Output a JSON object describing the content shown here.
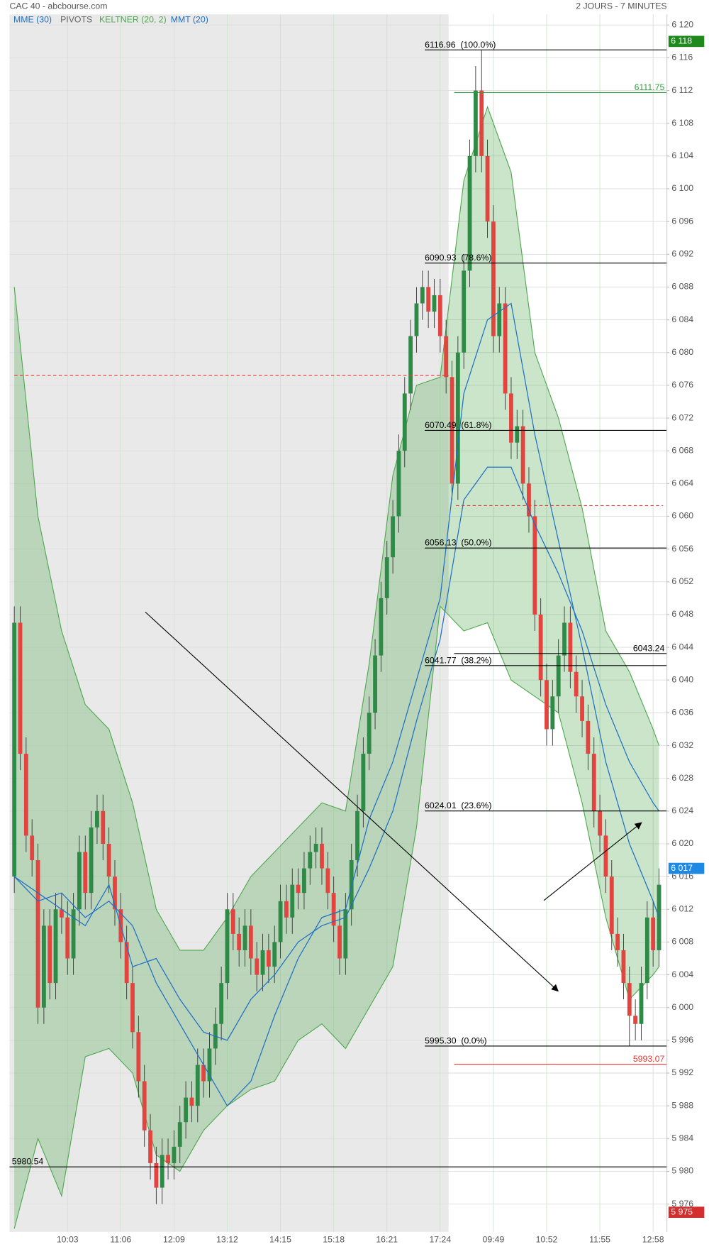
{
  "header": {
    "title": "CAC 40 - abcbourse.com",
    "period": "2 JOURS - 7 MINUTES"
  },
  "chart_data": {
    "type": "candlestick",
    "categories": [
      null,
      null,
      null,
      null,
      null,
      null,
      null,
      null,
      null,
      "10:03",
      null,
      null,
      null,
      null,
      null,
      null,
      null,
      null,
      "11:06",
      null,
      null,
      null,
      null,
      null,
      null,
      null,
      null,
      "12:09",
      null,
      null,
      null,
      null,
      null,
      null,
      null,
      null,
      "13:12",
      null,
      null,
      null,
      null,
      null,
      null,
      null,
      null,
      "14:15",
      null,
      null,
      null,
      null,
      null,
      null,
      null,
      null,
      "15:18",
      null,
      null,
      null,
      null,
      null,
      null,
      null,
      null,
      "16:21",
      null,
      null,
      null,
      null,
      null,
      null,
      null,
      null,
      "17:24",
      null,
      null,
      null,
      null,
      null,
      null,
      null,
      null,
      "09:49",
      null,
      null,
      null,
      null,
      null,
      null,
      null,
      null,
      "10:52",
      null,
      null,
      null,
      null,
      null,
      null,
      null,
      null,
      "11:55",
      null,
      null,
      null,
      null,
      null,
      null,
      null,
      null,
      "12:58",
      null
    ],
    "open": [
      6016,
      6047,
      6031,
      6021,
      6018,
      6000,
      6010,
      6003,
      6012,
      6011,
      6006,
      6012,
      6019,
      6014,
      6022,
      6024,
      6020,
      6016,
      6012,
      6008,
      6003,
      5997,
      5991,
      5985,
      5981,
      5978,
      5982,
      5981,
      5983,
      5986,
      5989,
      5988,
      5993,
      5991,
      5995,
      5998,
      6003,
      6012,
      6009,
      6007,
      6010,
      6006,
      6004,
      6007,
      6005,
      6008,
      6013,
      6011,
      6015,
      6014,
      6017,
      6019,
      6020,
      6017,
      6014,
      6010,
      6006,
      6012,
      6018,
      6024,
      6031,
      6036,
      6043,
      6050,
      6055,
      6060,
      6068,
      6075,
      6082,
      6086,
      6088,
      6085,
      6087,
      6082,
      6077,
      6064,
      6080,
      6090,
      6104,
      6112,
      6104,
      6096,
      6082,
      6086,
      6075,
      6069,
      6071,
      6064,
      6060,
      6048,
      6040,
      6034,
      6038,
      6043,
      6047,
      6041,
      6038,
      6035,
      6031,
      6024,
      6021,
      6016,
      6009,
      6007,
      6003,
      5999,
      5998,
      6003,
      6011,
      6007
    ],
    "high": [
      6049,
      6049,
      6033,
      6023,
      6020,
      6012,
      6012,
      6014,
      6014,
      6013,
      6014,
      6021,
      6021,
      6024,
      6026,
      6026,
      6022,
      6018,
      6014,
      6010,
      6005,
      5999,
      5993,
      5987,
      5983,
      5984,
      5984,
      5985,
      5988,
      5991,
      5991,
      5995,
      5995,
      5997,
      6000,
      6005,
      6014,
      6014,
      6011,
      6012,
      6012,
      6008,
      6009,
      6009,
      6010,
      6015,
      6015,
      6017,
      6017,
      6019,
      6021,
      6022,
      6022,
      6019,
      6016,
      6012,
      6014,
      6020,
      6026,
      6033,
      6038,
      6045,
      6052,
      6057,
      6062,
      6070,
      6077,
      6084,
      6088,
      6090,
      6090,
      6089,
      6089,
      6084,
      6079,
      6082,
      6092,
      6106,
      6115,
      6116.96,
      6106,
      6098,
      6088,
      6088,
      6077,
      6073,
      6073,
      6066,
      6062,
      6050,
      6042,
      6040,
      6045,
      6049,
      6049,
      6043,
      6040,
      6037,
      6033,
      6026,
      6023,
      6018,
      6011,
      6009,
      6005,
      6001,
      6005,
      6013,
      6013,
      6017
    ],
    "low": [
      6014,
      6029,
      6019,
      6016,
      5998,
      5998,
      6001,
      6001,
      6009,
      6004,
      6004,
      6010,
      6012,
      6012,
      6020,
      6018,
      6014,
      6010,
      6006,
      6001,
      5995,
      5989,
      5983,
      5979,
      5976,
      5976,
      5979,
      5979,
      5981,
      5984,
      5986,
      5986,
      5989,
      5989,
      5993,
      5996,
      6001,
      6007,
      6005,
      6005,
      6004,
      6002,
      6002,
      6003,
      6003,
      6006,
      6009,
      6009,
      6012,
      6012,
      6015,
      6017,
      6015,
      6012,
      6008,
      6004,
      6004,
      6010,
      6016,
      6022,
      6029,
      6034,
      6041,
      6048,
      6053,
      6058,
      6066,
      6073,
      6080,
      6084,
      6083,
      6083,
      6080,
      6075,
      6062,
      6062,
      6078,
      6088,
      6102,
      6102,
      6094,
      6080,
      6080,
      6073,
      6067,
      6067,
      6062,
      6058,
      6046,
      6038,
      6032,
      6032,
      6036,
      6041,
      6039,
      6036,
      6033,
      6029,
      6022,
      6019,
      6014,
      6007,
      6005,
      6001,
      5995.3,
      5996,
      5996,
      6001,
      6005,
      6005
    ],
    "close": [
      6047,
      6031,
      6021,
      6018,
      6000,
      6010,
      6003,
      6012,
      6011,
      6006,
      6012,
      6019,
      6014,
      6022,
      6024,
      6020,
      6016,
      6012,
      6008,
      6003,
      5997,
      5991,
      5985,
      5981,
      5978,
      5982,
      5981,
      5983,
      5986,
      5989,
      5988,
      5993,
      5991,
      5995,
      5998,
      6003,
      6012,
      6009,
      6007,
      6010,
      6006,
      6004,
      6007,
      6005,
      6008,
      6013,
      6011,
      6015,
      6014,
      6017,
      6019,
      6020,
      6017,
      6014,
      6010,
      6006,
      6012,
      6018,
      6024,
      6031,
      6036,
      6043,
      6050,
      6055,
      6060,
      6068,
      6075,
      6082,
      6086,
      6088,
      6085,
      6087,
      6082,
      6077,
      6064,
      6080,
      6090,
      6104,
      6112,
      6104,
      6096,
      6082,
      6086,
      6075,
      6069,
      6071,
      6064,
      6060,
      6048,
      6040,
      6034,
      6038,
      6043,
      6047,
      6041,
      6038,
      6035,
      6031,
      6024,
      6021,
      6016,
      6009,
      6007,
      6003,
      5999,
      5998,
      6003,
      6011,
      6007,
      6015
    ],
    "up_color": "#2f8a47",
    "down_color": "#e2453f",
    "ylim": [
      5972.6,
      6121.3
    ],
    "yticks": [
      {
        "value": 5976,
        "label": "5 976"
      },
      {
        "value": 5980,
        "label": "5 980"
      },
      {
        "value": 5984,
        "label": "5 984"
      },
      {
        "value": 5988,
        "label": "5 988"
      },
      {
        "value": 5992,
        "label": "5 992"
      },
      {
        "value": 5996,
        "label": "5 996"
      },
      {
        "value": 6000,
        "label": "6 000"
      },
      {
        "value": 6004,
        "label": "6 004"
      },
      {
        "value": 6008,
        "label": "6 008"
      },
      {
        "value": 6012,
        "label": "6 012"
      },
      {
        "value": 6016,
        "label": "6 016"
      },
      {
        "value": 6020,
        "label": "6 020"
      },
      {
        "value": 6024,
        "label": "6 024"
      },
      {
        "value": 6028,
        "label": "6 028"
      },
      {
        "value": 6032,
        "label": "6 032"
      },
      {
        "value": 6036,
        "label": "6 036"
      },
      {
        "value": 6040,
        "label": "6 040"
      },
      {
        "value": 6044,
        "label": "6 044"
      },
      {
        "value": 6048,
        "label": "6 048"
      },
      {
        "value": 6052,
        "label": "6 052"
      },
      {
        "value": 6056,
        "label": "6 056"
      },
      {
        "value": 6060,
        "label": "6 060"
      },
      {
        "value": 6064,
        "label": "6 064"
      },
      {
        "value": 6068,
        "label": "6 068"
      },
      {
        "value": 6072,
        "label": "6 072"
      },
      {
        "value": 6076,
        "label": "6 076"
      },
      {
        "value": 6080,
        "label": "6 080"
      },
      {
        "value": 6084,
        "label": "6 084"
      },
      {
        "value": 6088,
        "label": "6 088"
      },
      {
        "value": 6092,
        "label": "6 092"
      },
      {
        "value": 6096,
        "label": "6 096"
      },
      {
        "value": 6100,
        "label": "6 100"
      },
      {
        "value": 6104,
        "label": "6 104"
      },
      {
        "value": 6108,
        "label": "6 108"
      },
      {
        "value": 6112,
        "label": "6 112"
      },
      {
        "value": 6116,
        "label": "6 116"
      },
      {
        "value": 6120,
        "label": "6 120"
      }
    ],
    "grid": true,
    "indicators": [
      {
        "name": "MME (30)",
        "color": "#1f6fc5",
        "x": [
          0,
          4,
          8,
          12,
          16,
          20,
          24,
          28,
          32,
          36,
          40,
          44,
          48,
          52,
          56,
          60,
          64,
          68,
          72,
          76,
          80,
          84,
          88,
          92,
          96,
          100,
          104,
          108,
          109
        ],
        "values": [
          6016,
          6014,
          6012,
          6010,
          6015,
          6005,
          6006,
          6001,
          5997,
          5996,
          6001,
          6004,
          6008,
          6010,
          6011,
          6017,
          6024,
          6035,
          6045,
          6062,
          6066,
          6066,
          6059,
          6053,
          6046,
          6037,
          6030,
          6025,
          6024
        ]
      },
      {
        "name": "PIVOTS",
        "color": "#e53935",
        "values": [
          6077.2,
          6061.3
        ]
      },
      {
        "name": "KELTNER (20, 2)",
        "color": "#4fa84f",
        "x": [
          0,
          4,
          8,
          12,
          16,
          20,
          24,
          28,
          32,
          36,
          40,
          44,
          48,
          52,
          56,
          60,
          64,
          68,
          72,
          76,
          80,
          84,
          88,
          92,
          96,
          100,
          104,
          108,
          109
        ],
        "upper": [
          6088,
          6060,
          6046,
          6037,
          6034,
          6025,
          6012,
          6007,
          6007,
          6011,
          6016,
          6019,
          6022,
          6025,
          6024,
          6042,
          6065,
          6076,
          6077,
          6101,
          6110,
          6102,
          6080,
          6072,
          6061,
          6046,
          6041,
          6034,
          6032
        ],
        "lower": [
          5973,
          5984,
          5977,
          5994,
          5995,
          5992,
          5982,
          5980,
          5985,
          5988,
          5990,
          5991,
          5996,
          5998,
          5995,
          6000,
          6005,
          6022,
          6049,
          6046,
          6047,
          6040,
          6038,
          6036,
          6025,
          6011,
          6001,
          6004,
          6005
        ]
      },
      {
        "name": "MMT (20)",
        "color": "#1f6fc5",
        "x": [
          0,
          4,
          8,
          12,
          16,
          20,
          24,
          28,
          32,
          36,
          40,
          44,
          48,
          52,
          56,
          60,
          64,
          68,
          72,
          76,
          80,
          84,
          88,
          92,
          96,
          100,
          104,
          108,
          109
        ],
        "values": [
          6016,
          6013,
          6014,
          6011,
          6013,
          6010,
          6003,
          5998,
          5993,
          5988,
          5991,
          5999,
          6006,
          6011,
          6012,
          6023,
          6030,
          6040,
          6050,
          6075,
          6084,
          6086,
          6070,
          6057,
          6044,
          6030,
          6020,
          6013,
          6011
        ]
      }
    ],
    "levels": [
      {
        "value": 5980.54,
        "color": "#000000",
        "side": "left"
      },
      {
        "value": 6043.24,
        "color": "#000000",
        "side": "right"
      },
      {
        "value": 6111.75,
        "color": "#2e9e3e",
        "side": "right"
      },
      {
        "value": 5993.07,
        "color": "#e53935",
        "side": "right"
      }
    ],
    "fibonacci": {
      "color": "#000000",
      "levels": [
        {
          "value": 6116.96,
          "label": "6116.96  (100.0%)"
        },
        {
          "value": 6090.93,
          "label": "6090.93  (78.6%)"
        },
        {
          "value": 6070.49,
          "label": "6070.49  (61.8%)"
        },
        {
          "value": 6056.13,
          "label": "6056.13  (50.0%)"
        },
        {
          "value": 6041.77,
          "label": "6041.77  (38.2%)"
        },
        {
          "value": 6024.01,
          "label": "6024.01  (23.6%)"
        },
        {
          "value": 5995.3,
          "label": "5995.30  (0.0%)"
        }
      ]
    },
    "price_tags": [
      {
        "value": 6118,
        "label": "6 118",
        "color": "#1e8a1e"
      },
      {
        "value": 6017,
        "label": "6 017",
        "color": "#1e88e5"
      },
      {
        "value": 5975,
        "label": "5 975",
        "color": "#d32f2f"
      }
    ]
  }
}
